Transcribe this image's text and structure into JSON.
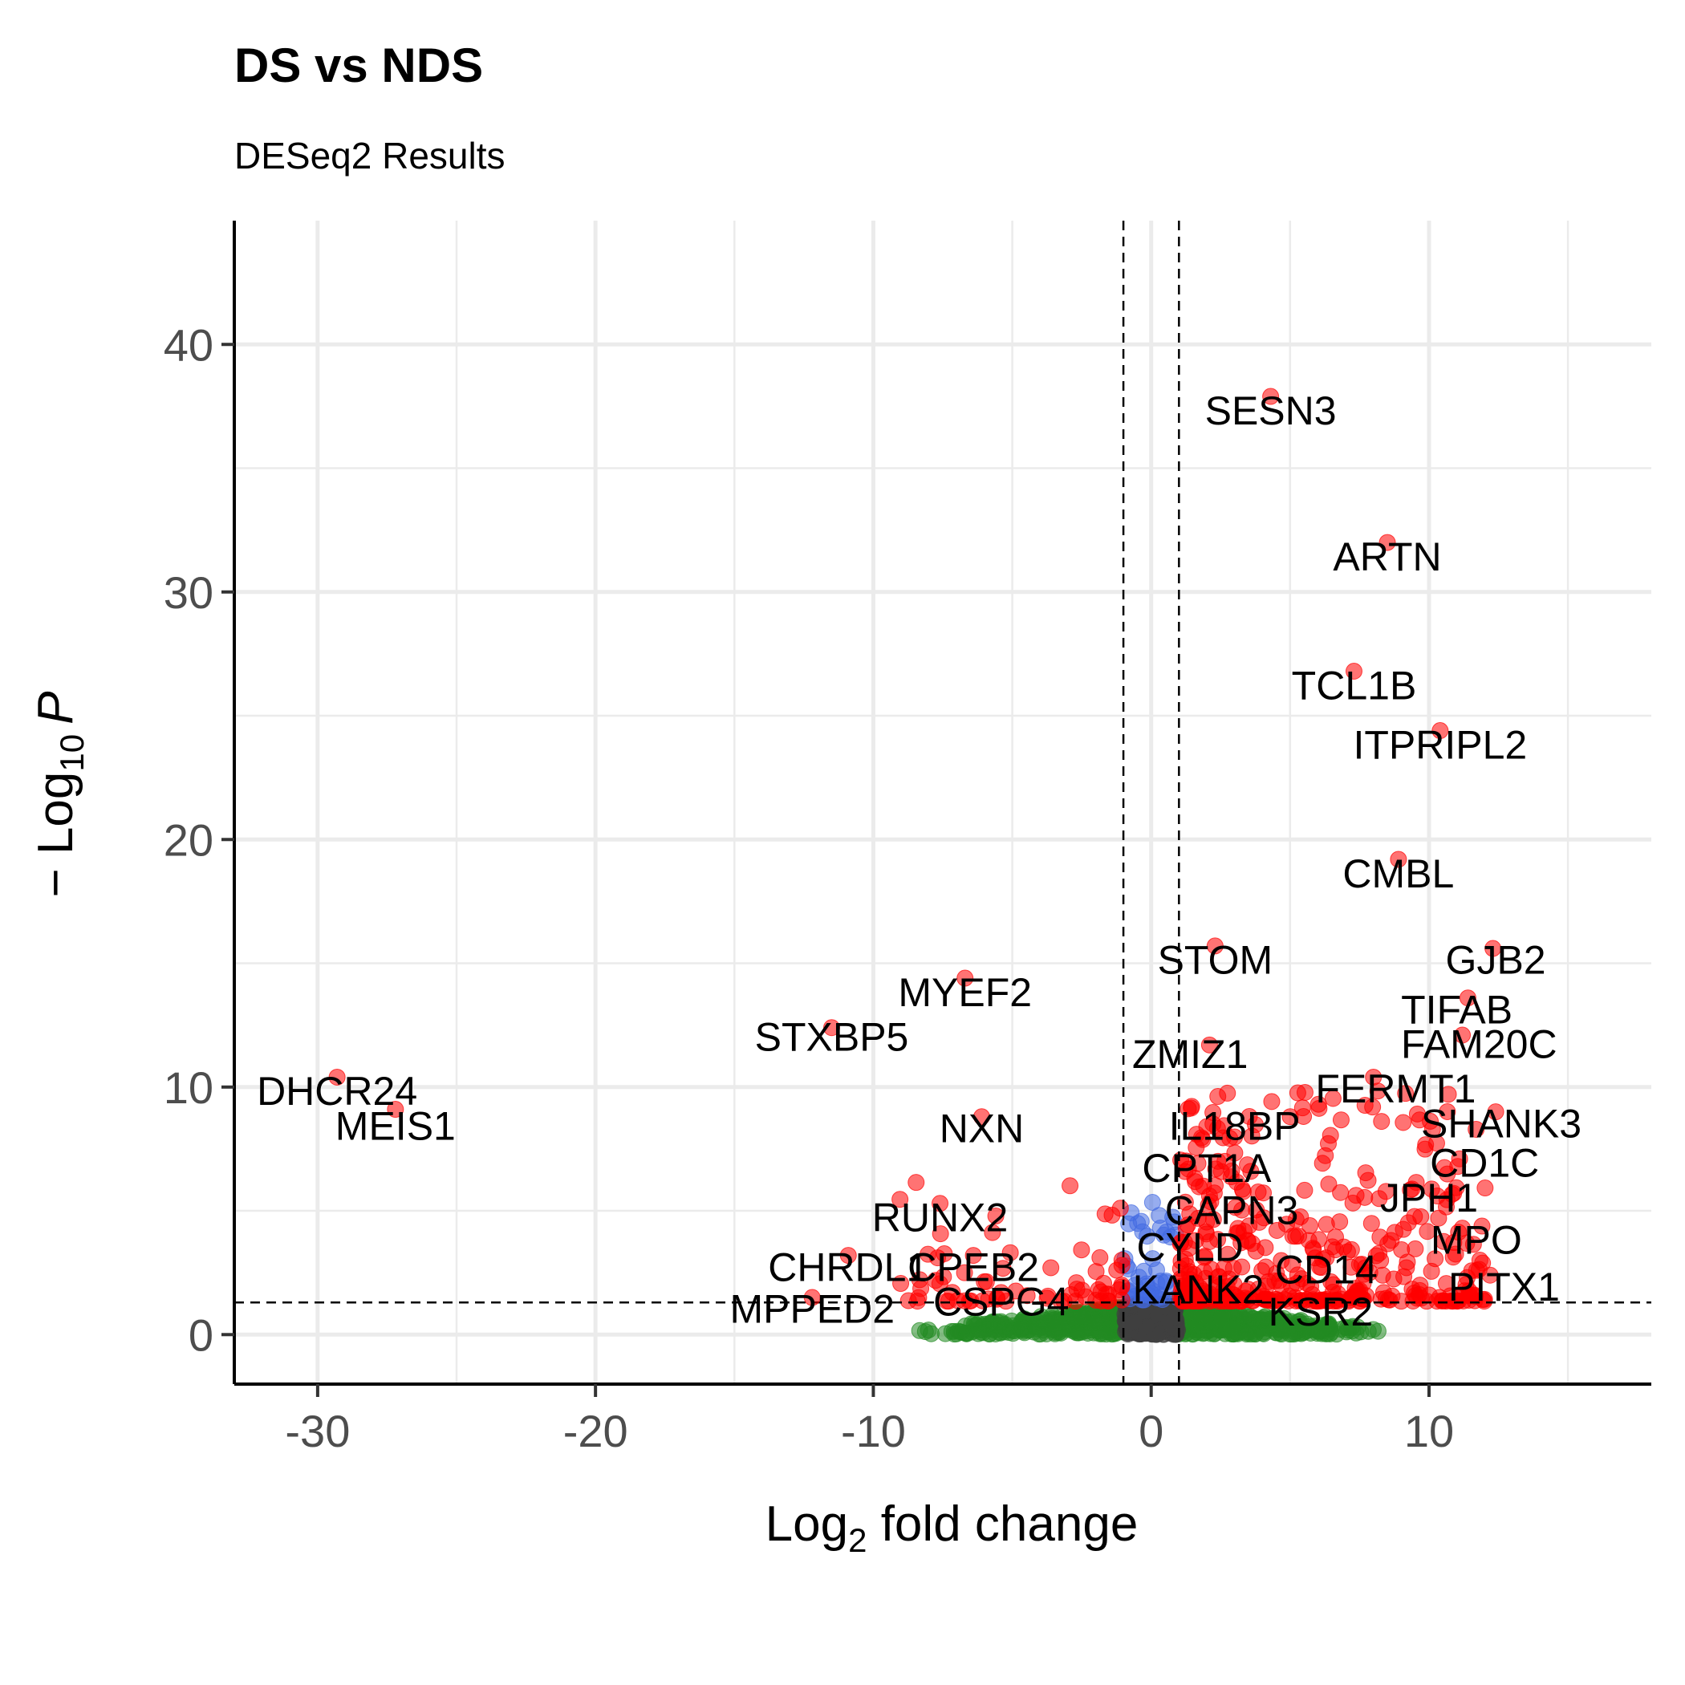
{
  "chart_data": {
    "type": "scatter",
    "title": "DS vs NDS",
    "subtitle": "DESeq2 Results",
    "xlabel": {
      "main": "Log",
      "sub": "2",
      "rest": " fold change"
    },
    "ylabel": {
      "main": "− Log",
      "sub": "10",
      "rest": "P"
    },
    "xlim": [
      -33,
      18
    ],
    "ylim": [
      -2,
      45
    ],
    "x_ticks": [
      -30,
      -20,
      -10,
      0,
      10
    ],
    "y_ticks": [
      0,
      10,
      20,
      30,
      40
    ],
    "x_tick_labels": [
      "-30",
      "-20",
      "-10",
      "0",
      "10"
    ],
    "y_tick_labels": [
      "0",
      "10",
      "20",
      "30",
      "40"
    ],
    "grid": true,
    "fc_cutoff": 1,
    "p_cutoff_neglog10": 1.3,
    "colors": {
      "ns": "#404040",
      "log2fc": "#228B22",
      "p": "#4169E1",
      "p_and_log2fc": "#FF0000"
    },
    "labeled_genes": [
      {
        "gene": "SESN3",
        "x": 4.3,
        "y": 37.9,
        "lx": 4.3,
        "ly": 37.2
      },
      {
        "gene": "ARTN",
        "x": 8.5,
        "y": 32.0,
        "lx": 8.5,
        "ly": 31.3
      },
      {
        "gene": "TCL1B",
        "x": 7.3,
        "y": 26.8,
        "lx": 7.3,
        "ly": 26.1
      },
      {
        "gene": "ITPRIPL2",
        "x": 10.4,
        "y": 24.4,
        "lx": 10.4,
        "ly": 23.7
      },
      {
        "gene": "CMBL",
        "x": 8.9,
        "y": 19.2,
        "lx": 8.9,
        "ly": 18.5
      },
      {
        "gene": "STOM",
        "x": 2.3,
        "y": 15.7,
        "lx": 2.3,
        "ly": 15.0
      },
      {
        "gene": "GJB2",
        "x": 12.3,
        "y": 15.6,
        "lx": 12.4,
        "ly": 15.0
      },
      {
        "gene": "MYEF2",
        "x": -6.7,
        "y": 14.4,
        "lx": -6.7,
        "ly": 13.7
      },
      {
        "gene": "TIFAB",
        "x": 11.4,
        "y": 13.6,
        "lx": 11.0,
        "ly": 13.0
      },
      {
        "gene": "STXBP5",
        "x": -11.5,
        "y": 12.4,
        "lx": -11.5,
        "ly": 11.9
      },
      {
        "gene": "FAM20C",
        "x": 11.2,
        "y": 12.1,
        "lx": 11.8,
        "ly": 11.6
      },
      {
        "gene": "ZMIZ1",
        "x": 2.1,
        "y": 11.7,
        "lx": 1.4,
        "ly": 11.2
      },
      {
        "gene": "DHCR24",
        "x": -29.3,
        "y": 10.4,
        "lx": -29.3,
        "ly": 9.7
      },
      {
        "gene": "FERMT1",
        "x": 8.0,
        "y": 10.4,
        "lx": 8.8,
        "ly": 9.8
      },
      {
        "gene": "MEIS1",
        "x": -27.2,
        "y": 9.1,
        "lx": -27.2,
        "ly": 8.3
      },
      {
        "gene": "SHANK3",
        "x": 12.4,
        "y": 9.0,
        "lx": 12.6,
        "ly": 8.4
      },
      {
        "gene": "IL18BP",
        "x": 2.0,
        "y": 8.4,
        "lx": 3.0,
        "ly": 8.3
      },
      {
        "gene": "NXN",
        "x": -6.1,
        "y": 8.8,
        "lx": -6.1,
        "ly": 8.2
      },
      {
        "gene": "CD1C",
        "x": 11.1,
        "y": 7.1,
        "lx": 12.0,
        "ly": 6.8
      },
      {
        "gene": "CPT1A",
        "x": 2.4,
        "y": 7.0,
        "lx": 2.0,
        "ly": 6.6
      },
      {
        "gene": "JPH1",
        "x": 10.3,
        "y": 5.6,
        "lx": 10.0,
        "ly": 5.4
      },
      {
        "gene": "CAPN3",
        "x": 2.1,
        "y": 5.6,
        "lx": 2.9,
        "ly": 4.9
      },
      {
        "gene": "RUNX2",
        "x": -7.6,
        "y": 5.3,
        "lx": -7.6,
        "ly": 4.6
      },
      {
        "gene": "MPO",
        "x": 11.2,
        "y": 4.3,
        "lx": 11.7,
        "ly": 3.7
      },
      {
        "gene": "CYLD",
        "x": 1.6,
        "y": 3.8,
        "lx": 1.4,
        "ly": 3.4
      },
      {
        "gene": "CHRDL1",
        "x": -10.9,
        "y": 3.2,
        "lx": -10.9,
        "ly": 2.6
      },
      {
        "gene": "CPEB2",
        "x": -6.4,
        "y": 3.2,
        "lx": -6.4,
        "ly": 2.6
      },
      {
        "gene": "CD14",
        "x": 6.3,
        "y": 3.1,
        "lx": 6.3,
        "ly": 2.5
      },
      {
        "gene": "PITX1",
        "x": 12.2,
        "y": 2.4,
        "lx": 12.7,
        "ly": 1.8
      },
      {
        "gene": "KANK2",
        "x": 1.6,
        "y": 2.1,
        "lx": 1.7,
        "ly": 1.7
      },
      {
        "gene": "CSPG4",
        "x": -5.4,
        "y": 1.7,
        "lx": -5.4,
        "ly": 1.2
      },
      {
        "gene": "MPPED2",
        "x": -12.2,
        "y": 1.5,
        "lx": -12.2,
        "ly": 0.9
      },
      {
        "gene": "KSR2",
        "x": 6.1,
        "y": 1.4,
        "lx": 6.1,
        "ly": 0.8
      }
    ]
  }
}
